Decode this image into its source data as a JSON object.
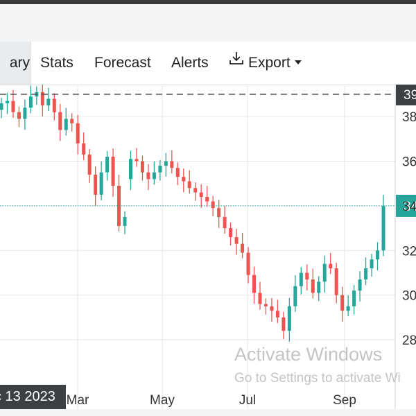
{
  "tabs": {
    "summary_partial": "ary",
    "stats": "Stats",
    "forecast": "Forecast",
    "alerts": "Alerts",
    "export": "Export"
  },
  "icons": {
    "export": "download-icon",
    "export_caret": "caret-down-icon"
  },
  "colors": {
    "up": "#26a69a",
    "down": "#ef5350",
    "current_badge": "#26a69a",
    "high_badge": "#3c4043",
    "hover_badge": "#3c4043"
  },
  "chart_data": {
    "type": "candlestick",
    "x_tick_labels": [
      "Mar",
      "May",
      "Jul",
      "Sep"
    ],
    "y_tick_labels": [
      "38",
      "36",
      "34",
      "32",
      "30",
      "28"
    ],
    "y_ticks": [
      38,
      36,
      34,
      32,
      30,
      28
    ],
    "ylim": [
      27.9,
      39.4
    ],
    "high_line": {
      "value": 39.0,
      "label": "39"
    },
    "current_price": {
      "value": 34.0,
      "label": "34"
    },
    "hover_date_label": "c 13 2023",
    "candles_closes": [
      38.6,
      38.7,
      38.2,
      37.9,
      38.4,
      38.9,
      39.1,
      38.5,
      38.8,
      38.2,
      37.4,
      37.9,
      37.7,
      36.8,
      36.3,
      35.4,
      34.5,
      35.5,
      36.2,
      34.9,
      33.1,
      33.5,
      36.1,
      36.0,
      35.5,
      35.2,
      35.5,
      35.8,
      36.0,
      35.7,
      35.3,
      35.1,
      34.8,
      34.6,
      34.4,
      34.2,
      33.9,
      33.5,
      33.0,
      32.6,
      32.3,
      31.9,
      30.9,
      30.1,
      29.6,
      29.5,
      29.3,
      29.0,
      28.4,
      29.5,
      30.4,
      31.0,
      30.7,
      30.1,
      30.6,
      31.4,
      31.2,
      30.0,
      29.3,
      29.5,
      30.2,
      30.7,
      31.2,
      31.6,
      32.0,
      34.0
    ],
    "candles_opens": [
      38.3,
      38.6,
      38.7,
      38.2,
      37.9,
      38.4,
      38.9,
      39.1,
      38.5,
      38.8,
      38.2,
      37.4,
      37.9,
      37.7,
      36.8,
      36.3,
      35.4,
      34.5,
      35.5,
      36.2,
      34.9,
      33.1,
      35.2,
      36.1,
      36.0,
      35.5,
      35.2,
      35.5,
      35.8,
      36.0,
      35.7,
      35.3,
      35.1,
      34.8,
      34.6,
      34.4,
      34.2,
      33.9,
      33.5,
      33.0,
      32.6,
      32.3,
      31.9,
      30.9,
      30.1,
      29.6,
      29.5,
      29.3,
      29.0,
      28.4,
      29.5,
      30.4,
      31.0,
      30.7,
      30.1,
      30.6,
      31.4,
      31.2,
      30.0,
      29.3,
      29.5,
      30.2,
      30.7,
      31.2,
      31.6,
      32.0
    ],
    "grid": true
  },
  "watermark": {
    "title": "Activate Windows",
    "subtitle": "Go to Settings to activate Wi"
  }
}
